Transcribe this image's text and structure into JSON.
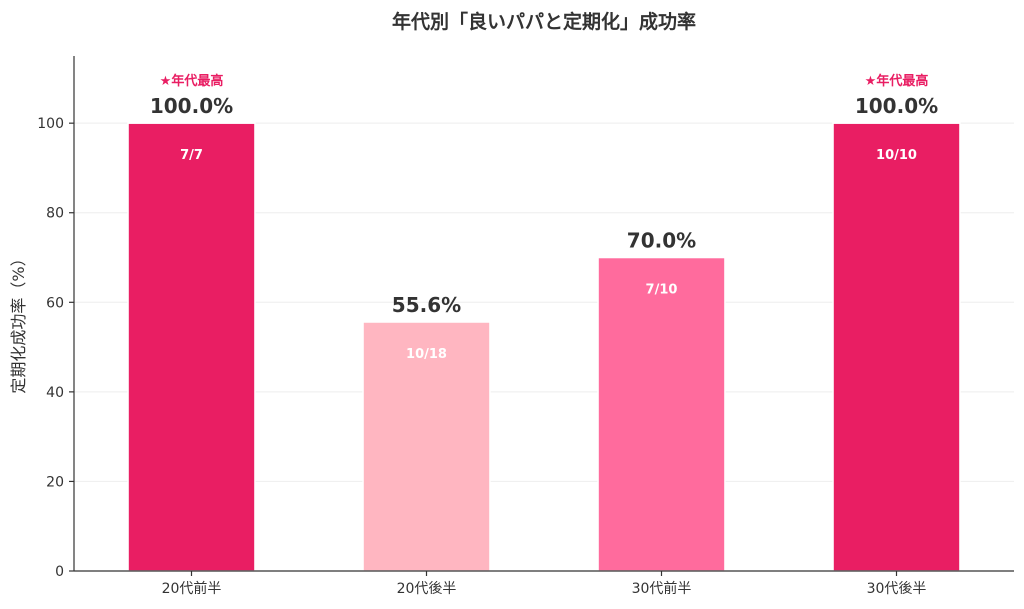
{
  "chart_data": {
    "type": "bar",
    "title": "年代別「良いパパと定期化」成功率",
    "ylabel": "定期化成功率（%）",
    "xlabel": "",
    "ylim": [
      0,
      115
    ],
    "yticks": [
      0,
      20,
      40,
      60,
      80,
      100
    ],
    "grid": true,
    "categories": [
      "20代前半",
      "20代後半",
      "30代前半",
      "30代後半"
    ],
    "values": [
      100.0,
      55.6,
      70.0,
      100.0
    ],
    "value_labels": [
      "100.0%",
      "55.6%",
      "70.0%",
      "100.0%"
    ],
    "count_labels": [
      "7/7",
      "10/18",
      "7/10",
      "10/10"
    ],
    "badges": [
      "★年代最高",
      "",
      "",
      "★年代最高"
    ],
    "colors": [
      "#e91e63",
      "#ffb6c1",
      "#ff6b9d",
      "#e91e63"
    ]
  }
}
